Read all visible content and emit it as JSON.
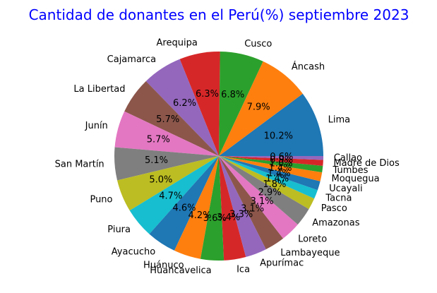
{
  "chart_data": {
    "type": "pie",
    "title": "Cantidad de donantes en el Perú(%) septiembre 2023",
    "slices": [
      {
        "label": "Lima",
        "value": 10.2,
        "color": "#1f77b4"
      },
      {
        "label": "Áncash",
        "value": 7.9,
        "color": "#ff7f0e"
      },
      {
        "label": "Cusco",
        "value": 6.8,
        "color": "#2ca02c"
      },
      {
        "label": "Arequipa",
        "value": 6.3,
        "color": "#d62728"
      },
      {
        "label": "Cajamarca",
        "value": 6.2,
        "color": "#9467bd"
      },
      {
        "label": "La Libertad",
        "value": 5.7,
        "color": "#8c564b"
      },
      {
        "label": "Junín",
        "value": 5.7,
        "color": "#e377c2"
      },
      {
        "label": "San Martín",
        "value": 5.1,
        "color": "#7f7f7f"
      },
      {
        "label": "Puno",
        "value": 5.0,
        "color": "#bcbd22"
      },
      {
        "label": "Piura",
        "value": 4.7,
        "color": "#17becf"
      },
      {
        "label": "Ayacucho",
        "value": 4.6,
        "color": "#1f77b4"
      },
      {
        "label": "Huánuco",
        "value": 4.2,
        "color": "#ff7f0e"
      },
      {
        "label": "Huancavelica",
        "value": 3.6,
        "color": "#2ca02c"
      },
      {
        "label": "Ica",
        "value": 3.4,
        "color": "#d62728"
      },
      {
        "label": "Apurímac",
        "value": 3.3,
        "color": "#9467bd"
      },
      {
        "label": "Lambayeque",
        "value": 3.1,
        "color": "#8c564b"
      },
      {
        "label": "Loreto",
        "value": 3.1,
        "color": "#e377c2"
      },
      {
        "label": "Amazonas",
        "value": 2.9,
        "color": "#7f7f7f"
      },
      {
        "label": "Pasco",
        "value": 1.8,
        "color": "#bcbd22"
      },
      {
        "label": "Tacna",
        "value": 1.4,
        "color": "#17becf"
      },
      {
        "label": "Ucayali",
        "value": 1.4,
        "color": "#1f77b4"
      },
      {
        "label": "Moquegua",
        "value": 1.4,
        "color": "#ff7f0e"
      },
      {
        "label": "Tumbes",
        "value": 1.0,
        "color": "#2ca02c"
      },
      {
        "label": "Madre de Dios",
        "value": 0.9,
        "color": "#d62728"
      },
      {
        "label": "Callao",
        "value": 0.6,
        "color": "#9467bd"
      }
    ]
  }
}
